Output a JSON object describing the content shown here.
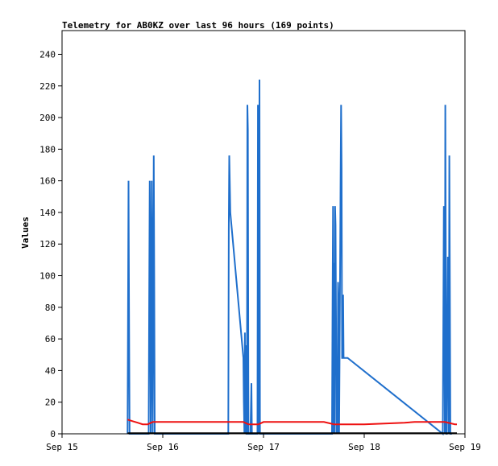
{
  "chart_data": {
    "type": "line",
    "title": "Telemetry for AB0KZ over last 96 hours (169 points)",
    "xlabel": "",
    "ylabel": "Values",
    "xlim": [
      0,
      4
    ],
    "ylim": [
      0,
      255
    ],
    "x_ticks": [
      {
        "value": 0,
        "label": "Sep 15"
      },
      {
        "value": 1,
        "label": "Sep 16"
      },
      {
        "value": 2,
        "label": "Sep 17"
      },
      {
        "value": 3,
        "label": "Sep 18"
      },
      {
        "value": 4,
        "label": "Sep 19"
      }
    ],
    "y_ticks": [
      0,
      20,
      40,
      60,
      80,
      100,
      120,
      140,
      160,
      180,
      200,
      220,
      240
    ],
    "grid": false,
    "colors": {
      "blue": "#1f6fcc",
      "red": "#ee1111",
      "black": "#000000"
    },
    "series": [
      {
        "color": "blue",
        "x": [
          0.65,
          0.655,
          0.66,
          0.665,
          0.67,
          0.86,
          0.865,
          0.87,
          0.875,
          0.88,
          0.885,
          0.89,
          0.895,
          0.9,
          0.905,
          0.91,
          0.915,
          0.92,
          0.925,
          0.93,
          0.935,
          0.94,
          0.945,
          0.95,
          1.65,
          1.655,
          1.66,
          1.665,
          1.67,
          1.8,
          1.805,
          1.81,
          1.815,
          1.82,
          1.825,
          1.83,
          1.835,
          1.84,
          1.845,
          1.85,
          1.855,
          1.86,
          1.865,
          1.87,
          1.875,
          1.88,
          1.885,
          1.89,
          1.895,
          1.9,
          1.905,
          1.91,
          1.915,
          1.92,
          1.925,
          1.93,
          1.94,
          1.945,
          1.95,
          1.955,
          1.96,
          1.965,
          1.97,
          1.975,
          2.68,
          2.685,
          2.69,
          2.695,
          2.7,
          2.705,
          2.71,
          2.715,
          2.72,
          2.725,
          2.73,
          2.735,
          2.74,
          2.745,
          2.75,
          2.755,
          2.76,
          2.765,
          2.77,
          2.775,
          2.78,
          2.785,
          2.79,
          2.795,
          2.8,
          2.805,
          2.81,
          2.815,
          2.82,
          2.825,
          2.83,
          2.835,
          3.78,
          3.79,
          3.795,
          3.8,
          3.805,
          3.81,
          3.815,
          3.82,
          3.825,
          3.83,
          3.835,
          3.84,
          3.845,
          3.85,
          3.855,
          3.86,
          3.865,
          3.87
        ],
        "y": [
          0,
          80,
          160,
          80,
          0,
          0,
          80,
          160,
          120,
          0,
          40,
          160,
          80,
          0,
          88,
          176,
          100,
          0,
          0,
          0,
          0,
          0,
          0,
          0,
          0,
          128,
          176,
          160,
          140,
          48,
          20,
          0,
          64,
          0,
          56,
          0,
          0,
          208,
          192,
          0,
          0,
          0,
          0,
          0,
          16,
          32,
          0,
          0,
          0,
          0,
          0,
          0,
          0,
          0,
          0,
          0,
          0,
          208,
          200,
          0,
          224,
          0,
          0,
          0,
          0,
          72,
          144,
          0,
          108,
          0,
          144,
          132,
          72,
          0,
          48,
          0,
          96,
          84,
          0,
          48,
          100,
          156,
          208,
          168,
          48,
          48,
          88,
          48,
          48,
          48,
          48,
          48,
          48,
          48,
          48,
          48,
          0,
          144,
          104,
          0,
          208,
          100,
          0,
          0,
          56,
          112,
          56,
          0,
          176,
          88,
          0,
          0,
          0,
          0
        ]
      },
      {
        "color": "red",
        "x": [
          0.65,
          0.7,
          0.75,
          0.8,
          0.85,
          0.9,
          1.0,
          1.2,
          1.4,
          1.6,
          1.8,
          1.85,
          1.9,
          1.95,
          2.0,
          2.2,
          2.4,
          2.6,
          2.7,
          2.8,
          3.0,
          3.2,
          3.4,
          3.5,
          3.6,
          3.7,
          3.8,
          3.9,
          3.92
        ],
        "y": [
          9,
          8,
          7,
          6,
          6,
          7.5,
          7.5,
          7.5,
          7.5,
          7.5,
          7.5,
          6,
          6,
          6,
          7.5,
          7.5,
          7.5,
          7.5,
          6,
          6,
          6,
          6.5,
          7,
          7.5,
          7.5,
          7.5,
          7.5,
          6,
          6
        ]
      },
      {
        "color": "black",
        "x": [
          0.65,
          3.92
        ],
        "y": [
          0.5,
          0.5
        ]
      }
    ]
  }
}
